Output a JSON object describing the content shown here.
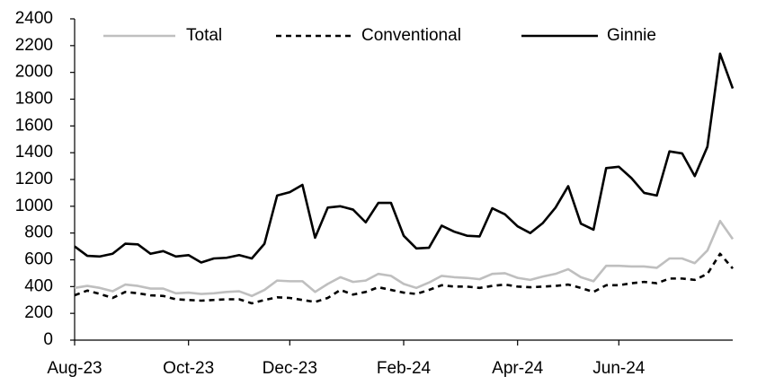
{
  "chart_data": {
    "type": "line",
    "categories": [
      "Aug-23",
      null,
      null,
      null,
      null,
      null,
      null,
      null,
      null,
      "Oct-23",
      null,
      null,
      null,
      null,
      null,
      null,
      null,
      "Dec-23",
      null,
      null,
      null,
      null,
      null,
      null,
      null,
      null,
      "Feb-24",
      null,
      null,
      null,
      null,
      null,
      null,
      null,
      null,
      "Apr-24",
      null,
      null,
      null,
      null,
      null,
      null,
      null,
      "Jun-24",
      null,
      null,
      null,
      null,
      null,
      null,
      null,
      null,
      null
    ],
    "series": [
      {
        "name": "Total",
        "color": "#bfbfbf",
        "dash": false,
        "values": [
          390,
          405,
          390,
          365,
          415,
          405,
          385,
          385,
          350,
          355,
          345,
          350,
          360,
          365,
          330,
          375,
          445,
          440,
          440,
          360,
          420,
          470,
          435,
          445,
          495,
          480,
          420,
          390,
          430,
          480,
          470,
          465,
          455,
          495,
          500,
          465,
          450,
          475,
          495,
          530,
          470,
          440,
          555,
          555,
          550,
          550,
          540,
          610,
          610,
          575,
          670,
          890,
          755
        ]
      },
      {
        "name": "Conventional",
        "color": "#000000",
        "dash": true,
        "values": [
          335,
          370,
          345,
          315,
          360,
          350,
          335,
          330,
          305,
          300,
          295,
          300,
          305,
          305,
          275,
          300,
          320,
          315,
          300,
          285,
          315,
          375,
          340,
          360,
          395,
          375,
          355,
          345,
          375,
          410,
          400,
          400,
          390,
          405,
          415,
          400,
          395,
          400,
          405,
          415,
          390,
          360,
          410,
          410,
          425,
          435,
          425,
          460,
          460,
          450,
          495,
          645,
          535
        ]
      },
      {
        "name": "Ginnie",
        "color": "#000000",
        "dash": false,
        "values": [
          700,
          630,
          625,
          645,
          720,
          715,
          645,
          665,
          625,
          635,
          580,
          610,
          615,
          635,
          610,
          720,
          1080,
          1105,
          1160,
          765,
          990,
          1000,
          975,
          880,
          1025,
          1025,
          780,
          685,
          690,
          855,
          810,
          780,
          775,
          985,
          940,
          850,
          800,
          875,
          990,
          1150,
          870,
          825,
          1285,
          1295,
          1210,
          1100,
          1080,
          1410,
          1395,
          1225,
          1445,
          2140,
          1880
        ]
      }
    ],
    "ylim": [
      0,
      2400
    ],
    "yticks": [
      0,
      200,
      400,
      600,
      800,
      1000,
      1200,
      1400,
      1600,
      1800,
      2000,
      2200,
      2400
    ],
    "grid": false,
    "legend": "top"
  }
}
